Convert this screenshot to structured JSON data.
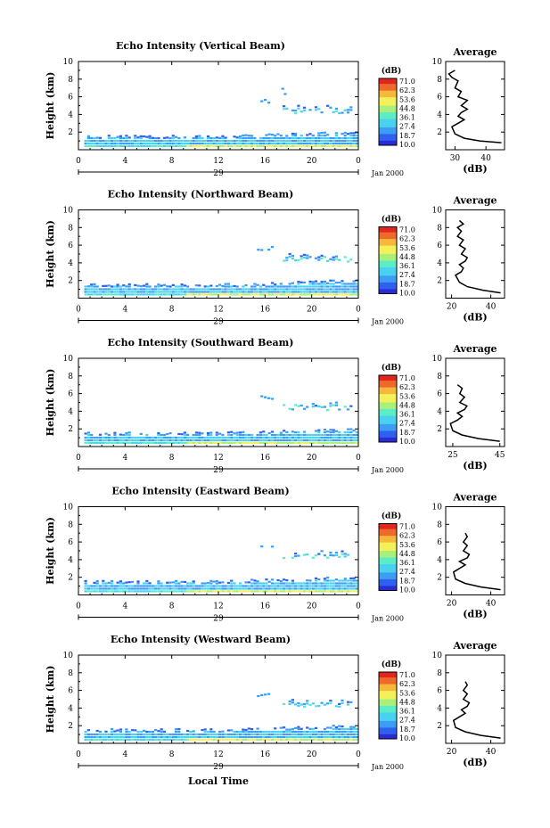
{
  "colors": {
    "scale": [
      "#2b2bd6",
      "#2f60ee",
      "#3d9df5",
      "#49d2f0",
      "#5bedc6",
      "#a8f07a",
      "#f4f05a",
      "#f5b83a",
      "#ef6a2a",
      "#e0261e"
    ],
    "background": "#ffffff",
    "axis": "#000000"
  },
  "colorbar": {
    "unit_label": "(dB)",
    "ticks": [
      "71.0",
      "62.3",
      "53.6",
      "44.8",
      "36.1",
      "27.4",
      "18.7",
      "10.0"
    ]
  },
  "xlabel": "Local Time",
  "chart_data": [
    {
      "type": "heatmap",
      "title": "Echo Intensity (Vertical Beam)",
      "ylabel": "Height (km)",
      "ylim": [
        0,
        10
      ],
      "yticks": [
        2,
        4,
        6,
        8,
        10
      ],
      "xlim": [
        0,
        24
      ],
      "xticks": [
        "0",
        "4",
        "8",
        "12",
        "16",
        "20",
        "0"
      ],
      "date_marker": "29",
      "date_label": "Jan 2000",
      "average_profile": {
        "title": "Average",
        "xlabel": "(dB)",
        "xticks": [
          "30",
          "40"
        ],
        "xlim": [
          27,
          46
        ],
        "ylim": [
          0,
          10
        ],
        "yticks": [
          2,
          4,
          6,
          8,
          10
        ],
        "points": [
          [
            45,
            0.8
          ],
          [
            38,
            1.0
          ],
          [
            33,
            1.3
          ],
          [
            30,
            1.8
          ],
          [
            29,
            2.6
          ],
          [
            31,
            3.0
          ],
          [
            33,
            3.4
          ],
          [
            31,
            3.8
          ],
          [
            32,
            4.2
          ],
          [
            34,
            4.6
          ],
          [
            32,
            5.0
          ],
          [
            34,
            5.6
          ],
          [
            31,
            6.0
          ],
          [
            32,
            6.6
          ],
          [
            30,
            7.0
          ],
          [
            31,
            7.8
          ],
          [
            29,
            8.2
          ],
          [
            28,
            8.6
          ],
          [
            30,
            9.0
          ]
        ]
      }
    },
    {
      "type": "heatmap",
      "title": "Echo Intensity (Northward Beam)",
      "ylabel": "Height (km)",
      "ylim": [
        0,
        10
      ],
      "yticks": [
        2,
        4,
        6,
        8,
        10
      ],
      "xlim": [
        0,
        24
      ],
      "xticks": [
        "0",
        "4",
        "8",
        "12",
        "16",
        "20",
        "0"
      ],
      "date_marker": "29",
      "date_label": "Jan 2000",
      "average_profile": {
        "title": "Average",
        "xlabel": "(dB)",
        "xticks": [
          "20",
          "40"
        ],
        "xlim": [
          17,
          47
        ],
        "ylim": [
          0,
          10
        ],
        "yticks": [
          2,
          4,
          6,
          8,
          10
        ],
        "points": [
          [
            45,
            0.6
          ],
          [
            36,
            0.9
          ],
          [
            28,
            1.3
          ],
          [
            24,
            1.8
          ],
          [
            22,
            2.6
          ],
          [
            25,
            3.0
          ],
          [
            26,
            3.4
          ],
          [
            24,
            3.8
          ],
          [
            27,
            4.2
          ],
          [
            28,
            4.6
          ],
          [
            25,
            5.0
          ],
          [
            27,
            5.6
          ],
          [
            24,
            6.0
          ],
          [
            26,
            6.6
          ],
          [
            23,
            7.0
          ],
          [
            25,
            7.6
          ],
          [
            23,
            8.0
          ],
          [
            26,
            8.4
          ],
          [
            24,
            8.8
          ]
        ]
      }
    },
    {
      "type": "heatmap",
      "title": "Echo Intensity (Southward Beam)",
      "ylabel": "Height (km)",
      "ylim": [
        0,
        10
      ],
      "yticks": [
        2,
        4,
        6,
        8,
        10
      ],
      "xlim": [
        0,
        24
      ],
      "xticks": [
        "0",
        "4",
        "8",
        "12",
        "16",
        "20",
        "0"
      ],
      "date_marker": "29",
      "date_label": "Jan 2000",
      "average_profile": {
        "title": "Average",
        "xlabel": "(dB)",
        "xticks": [
          "25",
          "45"
        ],
        "xlim": [
          22,
          47
        ],
        "ylim": [
          0,
          10
        ],
        "yticks": [
          2,
          4,
          6,
          8,
          10
        ],
        "points": [
          [
            45,
            0.6
          ],
          [
            36,
            0.9
          ],
          [
            29,
            1.3
          ],
          [
            25,
            1.8
          ],
          [
            24,
            2.6
          ],
          [
            27,
            3.0
          ],
          [
            29,
            3.4
          ],
          [
            27,
            3.8
          ],
          [
            30,
            4.2
          ],
          [
            31,
            4.6
          ],
          [
            28,
            5.0
          ],
          [
            30,
            5.6
          ],
          [
            28,
            6.0
          ],
          [
            29,
            6.6
          ],
          [
            27,
            7.0
          ]
        ]
      }
    },
    {
      "type": "heatmap",
      "title": "Echo Intensity (Eastward Beam)",
      "ylabel": "Height (km)",
      "ylim": [
        0,
        10
      ],
      "yticks": [
        2,
        4,
        6,
        8,
        10
      ],
      "xlim": [
        0,
        24
      ],
      "xticks": [
        "0",
        "4",
        "8",
        "12",
        "16",
        "20",
        "0"
      ],
      "date_marker": "29",
      "date_label": "Jan 2000",
      "average_profile": {
        "title": "Average",
        "xlabel": "(dB)",
        "xticks": [
          "20",
          "40"
        ],
        "xlim": [
          17,
          47
        ],
        "ylim": [
          0,
          10
        ],
        "yticks": [
          2,
          4,
          6,
          8,
          10
        ],
        "points": [
          [
            45,
            0.6
          ],
          [
            35,
            0.9
          ],
          [
            27,
            1.3
          ],
          [
            22,
            1.8
          ],
          [
            21,
            2.6
          ],
          [
            24,
            3.0
          ],
          [
            27,
            3.4
          ],
          [
            24,
            3.8
          ],
          [
            28,
            4.2
          ],
          [
            29,
            4.6
          ],
          [
            26,
            5.0
          ],
          [
            28,
            5.6
          ],
          [
            26,
            6.0
          ],
          [
            28,
            6.6
          ],
          [
            27,
            7.0
          ]
        ]
      }
    },
    {
      "type": "heatmap",
      "title": "Echo Intensity (Westward Beam)",
      "ylabel": "Height (km)",
      "ylim": [
        0,
        10
      ],
      "yticks": [
        2,
        4,
        6,
        8,
        10
      ],
      "xlim": [
        0,
        24
      ],
      "xticks": [
        "0",
        "4",
        "8",
        "12",
        "16",
        "20",
        "0"
      ],
      "date_marker": "29",
      "date_label": "Jan 2000",
      "average_profile": {
        "title": "Average",
        "xlabel": "(dB)",
        "xticks": [
          "20",
          "40"
        ],
        "xlim": [
          17,
          47
        ],
        "ylim": [
          0,
          10
        ],
        "yticks": [
          2,
          4,
          6,
          8,
          10
        ],
        "points": [
          [
            45,
            0.6
          ],
          [
            35,
            0.9
          ],
          [
            27,
            1.3
          ],
          [
            22,
            1.8
          ],
          [
            21,
            2.6
          ],
          [
            24,
            3.0
          ],
          [
            27,
            3.4
          ],
          [
            25,
            3.8
          ],
          [
            28,
            4.2
          ],
          [
            29,
            4.6
          ],
          [
            26,
            5.0
          ],
          [
            28,
            5.6
          ],
          [
            26,
            6.0
          ],
          [
            28,
            6.6
          ],
          [
            27,
            7.0
          ]
        ]
      }
    }
  ]
}
